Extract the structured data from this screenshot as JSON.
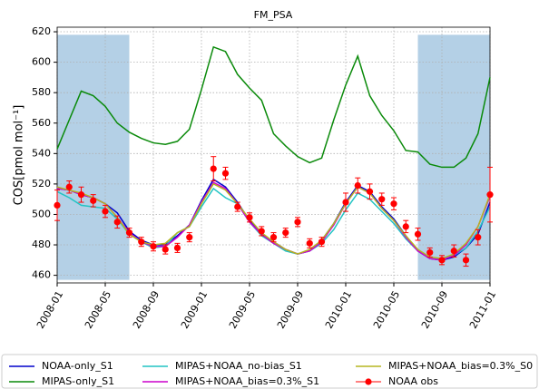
{
  "chart_data": {
    "type": "line",
    "title": "FM_PSA",
    "y_label": "COS[pmol mol⁻¹]",
    "x": [
      "2008-01",
      "2008-02",
      "2008-03",
      "2008-04",
      "2008-05",
      "2008-06",
      "2008-07",
      "2008-08",
      "2008-09",
      "2008-10",
      "2008-11",
      "2008-12",
      "2009-01",
      "2009-02",
      "2009-03",
      "2009-04",
      "2009-05",
      "2009-06",
      "2009-07",
      "2009-08",
      "2009-09",
      "2009-10",
      "2009-11",
      "2009-12",
      "2010-01",
      "2010-02",
      "2010-03",
      "2010-04",
      "2010-05",
      "2010-06",
      "2010-07",
      "2010-08",
      "2010-09",
      "2010-10",
      "2010-11",
      "2010-12",
      "2011-01"
    ],
    "series": [
      {
        "name": "NOAA-only_S1",
        "color": "#0000cc",
        "values": [
          517,
          516,
          513,
          511,
          507,
          501,
          489,
          483,
          480,
          480,
          486,
          493,
          509,
          523,
          518,
          508,
          496,
          487,
          482,
          477,
          474,
          476,
          483,
          494,
          508,
          519,
          515,
          505,
          497,
          486,
          476,
          471,
          470,
          472,
          478,
          487,
          508
        ]
      },
      {
        "name": "MIPAS-only_S1",
        "color": "#0a8a0a",
        "values": [
          543,
          562,
          581,
          578,
          571,
          560,
          554,
          550,
          547,
          546,
          548,
          556,
          582,
          610,
          607,
          592,
          583,
          575,
          553,
          545,
          538,
          534,
          537,
          562,
          585,
          604,
          578,
          565,
          555,
          542,
          541,
          533,
          531,
          531,
          537,
          553,
          590
        ]
      },
      {
        "name": "MIPAS+NOAA_no-bias_S1",
        "color": "#22c4c4",
        "values": [
          515,
          511,
          506,
          505,
          504,
          497,
          487,
          482,
          478,
          479,
          488,
          492,
          505,
          517,
          511,
          507,
          495,
          486,
          481,
          476,
          474,
          476,
          481,
          490,
          503,
          514,
          510,
          502,
          494,
          484,
          476,
          471,
          471,
          473,
          478,
          489,
          505
        ]
      },
      {
        "name": "MIPAS+NOAA_bias=0.3%_S1",
        "color": "#cc00cc",
        "values": [
          517,
          516,
          513,
          511,
          507,
          498,
          488,
          482,
          479,
          479,
          485,
          493,
          508,
          521,
          517,
          507,
          495,
          487,
          481,
          477,
          474,
          476,
          482,
          493,
          507,
          518,
          514,
          504,
          496,
          485,
          476,
          471,
          470,
          473,
          480,
          492,
          512
        ]
      },
      {
        "name": "MIPAS+NOAA_bias=0.3%_S0",
        "color": "#b5b520",
        "values": [
          518,
          516,
          514,
          511,
          507,
          498,
          487,
          482,
          480,
          481,
          488,
          492,
          507,
          520,
          516,
          507,
          497,
          488,
          482,
          477,
          474,
          477,
          483,
          494,
          507,
          518,
          514,
          504,
          496,
          486,
          477,
          472,
          471,
          474,
          481,
          492,
          513
        ]
      }
    ],
    "observations": {
      "name": "NOAA obs",
      "color": "#ff0000",
      "values": [
        506,
        518,
        513,
        509,
        502,
        495,
        488,
        482,
        479,
        477,
        478,
        485,
        null,
        530,
        527,
        505,
        498,
        489,
        485,
        488,
        495,
        481,
        482,
        null,
        508,
        519,
        515,
        510,
        507,
        492,
        487,
        475,
        470,
        476,
        470,
        485,
        513
      ],
      "errors": [
        10,
        4,
        5,
        4,
        4,
        4,
        3,
        3,
        3,
        3,
        3,
        3,
        null,
        8,
        4,
        3,
        3,
        3,
        3,
        3,
        3,
        3,
        3,
        null,
        6,
        5,
        5,
        4,
        4,
        4,
        4,
        3,
        3,
        4,
        4,
        5,
        18
      ]
    },
    "shaded_spans": [
      {
        "x": [
          "2008-01",
          "2008-07"
        ],
        "y": [
          457,
          618
        ]
      },
      {
        "x": [
          "2010-07",
          "2011-01"
        ],
        "y": [
          457,
          618
        ]
      }
    ],
    "shade_color": "#b4d0e6",
    "xlim": [
      "2008-01",
      "2011-01"
    ],
    "xticks": [
      "2008-01",
      "2008-05",
      "2008-09",
      "2009-01",
      "2009-05",
      "2009-09",
      "2010-01",
      "2010-05",
      "2010-09",
      "2011-01"
    ],
    "ylim": [
      455,
      623
    ],
    "yticks": [
      460,
      480,
      500,
      520,
      540,
      560,
      580,
      600,
      620
    ],
    "grid": true
  }
}
